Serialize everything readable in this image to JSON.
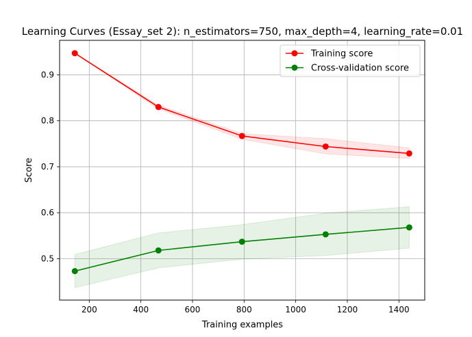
{
  "chart_data": {
    "type": "line",
    "title": "Learning Curves (Essay_set 2): n_estimators=750, max_depth=4,  learning_rate=0.01",
    "xlabel": "Training examples",
    "ylabel": "Score",
    "xlim": [
      85,
      1500
    ],
    "ylim": [
      0.41,
      0.975
    ],
    "xticks": [
      200,
      400,
      600,
      800,
      1000,
      1200,
      1400
    ],
    "yticks": [
      0.5,
      0.6,
      0.7,
      0.8,
      0.9
    ],
    "ytick_labels": [
      "0.5",
      "0.6",
      "0.7",
      "0.8",
      "0.9"
    ],
    "grid": true,
    "legend_position": "top-right",
    "x": [
      144,
      468,
      792,
      1116,
      1440
    ],
    "series": [
      {
        "name": "Training score",
        "color": "#ff0000",
        "values": [
          0.947,
          0.83,
          0.767,
          0.744,
          0.729
        ],
        "band_lower": [
          0.947,
          0.826,
          0.76,
          0.728,
          0.718
        ],
        "band_upper": [
          0.947,
          0.834,
          0.772,
          0.761,
          0.741
        ],
        "band_color": "#ff0000"
      },
      {
        "name": "Cross-validation score",
        "color": "#008000",
        "values": [
          0.473,
          0.518,
          0.537,
          0.553,
          0.568
        ],
        "band_lower": [
          0.437,
          0.48,
          0.499,
          0.507,
          0.523
        ],
        "band_upper": [
          0.509,
          0.556,
          0.574,
          0.599,
          0.613
        ],
        "band_color": "#008000"
      }
    ]
  }
}
